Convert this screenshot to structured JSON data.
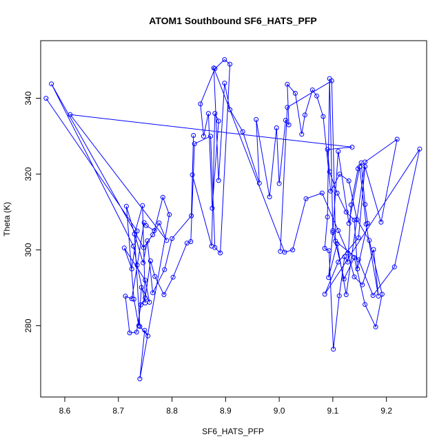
{
  "chart_data": {
    "type": "line",
    "title": "ATOM1 Southbound SF6_HATS_PFP",
    "xlabel": "SF6_HATS_PFP",
    "ylabel": "Theta (K)",
    "xlim": [
      8.555,
      9.275
    ],
    "ylim": [
      261.2,
      355.2
    ],
    "xticks": [
      8.6,
      8.7,
      8.8,
      8.9,
      9.0,
      9.1,
      9.2
    ],
    "xtick_labels": [
      "8.6",
      "8.7",
      "8.8",
      "8.9",
      "9.0",
      "9.1",
      "9.2"
    ],
    "yticks": [
      280,
      300,
      320,
      340
    ],
    "ytick_labels": [
      "280",
      "300",
      "320",
      "340"
    ],
    "grid": false,
    "marker": "open-circle",
    "color": "#0000ff",
    "series": [
      {
        "x": [
          8.565,
          8.735,
          8.725,
          8.711,
          8.75,
          8.758,
          8.743,
          8.738,
          8.729,
          8.715,
          8.746,
          8.754,
          8.764,
          8.786,
          8.8,
          8.836,
          8.84,
          8.838,
          8.874,
          8.88,
          8.887,
          8.875,
          8.868,
          8.859,
          8.853,
          8.88,
          8.898,
          8.908,
          8.89,
          8.88,
          8.872,
          8.842,
          8.835,
          8.828,
          8.802,
          8.785,
          8.768,
          8.76,
          8.75,
          8.742,
          8.734,
          8.721,
          8.713,
          8.725,
          8.748,
          8.752,
          8.767,
          8.783,
          8.795,
          8.74,
          8.749,
          8.755,
          8.74,
          8.73,
          8.745,
          8.75,
          8.735,
          8.728,
          8.575,
          8.747,
          8.764,
          8.776,
          8.79,
          8.61,
          9.136,
          9.09,
          9.094,
          9.108,
          9.125,
          9.14,
          9.146,
          9.165,
          9.16,
          9.153,
          9.147,
          9.134,
          9.128,
          9.122,
          9.112,
          9.101,
          9.093,
          9.085,
          9.09,
          9.094,
          9.1,
          9.121,
          9.14,
          9.16,
          9.18,
          9.192,
          9.168,
          9.145,
          9.13,
          9.113,
          9.096,
          9.082,
          9.07,
          9.062,
          9.048,
          9.042,
          9.03,
          9.015,
          9.018,
          9.012,
          9.0,
          8.995,
          8.982,
          8.957,
          8.963,
          8.932,
          8.908,
          8.898,
          8.887,
          8.878,
          9.01,
          9.025,
          9.05,
          9.08,
          9.11,
          9.128,
          9.14,
          9.155,
          9.176,
          9.185,
          9.162,
          9.15,
          9.13,
          9.11,
          9.1,
          9.092,
          9.108,
          9.125,
          9.16,
          9.22,
          9.19,
          9.16,
          9.148,
          9.11,
          9.085,
          9.262,
          9.215,
          9.175,
          9.148,
          9.105,
          9.098,
          9.015,
          9.002
        ],
        "y": [
          340.0,
          305.0,
          295.0,
          300.5,
          292.0,
          286.2,
          290.1,
          280.0,
          287.0,
          311.5,
          296.6,
          302.4,
          288.7,
          294.8,
          303.0,
          309.0,
          330.2,
          319.8,
          301.0,
          336.0,
          334.0,
          311.0,
          336.0,
          330.0,
          338.5,
          347.8,
          350.2,
          349.0,
          299.2,
          300.6,
          330.0,
          328.0,
          302.2,
          301.8,
          292.8,
          288.2,
          293.0,
          297.1,
          287.3,
          285.5,
          278.3,
          278.1,
          287.8,
          287.1,
          307.2,
          306.4,
          305.1,
          313.9,
          309.3,
          266.0,
          278.8,
          277.3,
          279.8,
          304.2,
          311.7,
          286.0,
          296.0,
          301.0,
          343.8,
          300.6,
          304.0,
          307.1,
          302.5,
          335.7,
          327.1,
          326.5,
          320.6,
          315.0,
          310.0,
          307.9,
          295.0,
          307.0,
          312.0,
          323.0,
          321.4,
          311.9,
          296.8,
          298.2,
          287.9,
          273.8,
          299.8,
          300.4,
          308.7,
          345.2,
          305.1,
          292.3,
          298.0,
          285.6,
          279.7,
          288.3,
          302.5,
          308.0,
          318.2,
          320.0,
          315.5,
          335.2,
          340.6,
          342.2,
          335.6,
          330.5,
          341.3,
          343.7,
          333.0,
          334.2,
          317.5,
          332.2,
          314.0,
          334.4,
          317.6,
          331.2,
          337.0,
          344.0,
          318.3,
          348.0,
          299.4,
          300.0,
          313.5,
          315.0,
          305.1,
          299.2,
          292.9,
          290.8,
          300.1,
          287.8,
          306.8,
          321.9,
          307.0,
          326.0,
          304.6,
          292.7,
          301.6,
          288.2,
          323.2,
          329.2,
          307.3,
          322.0,
          303.2,
          296.8,
          288.3,
          326.6,
          295.5,
          288.0,
          297.4,
          302.3,
          344.6,
          337.6,
          299.6
        ]
      }
    ]
  }
}
